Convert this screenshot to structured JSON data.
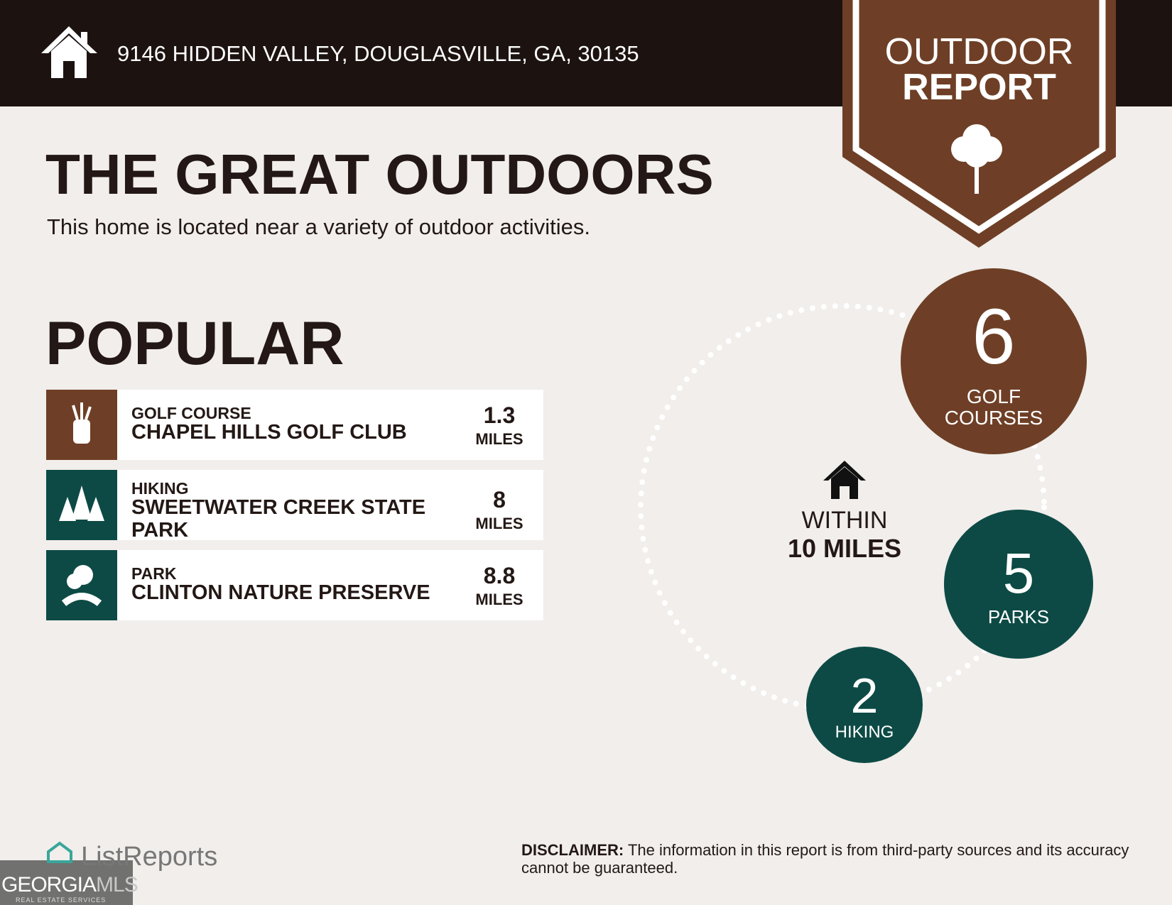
{
  "header": {
    "address": "9146 HIDDEN VALLEY, DOUGLASVILLE, GA, 30135"
  },
  "badge": {
    "line1": "OUTDOOR",
    "line2": "REPORT"
  },
  "title": "THE GREAT OUTDOORS",
  "subtitle": "This home is located near a variety of outdoor activities.",
  "section_title": "POPULAR",
  "activities": [
    {
      "category": "GOLF COURSE",
      "name": "CHAPEL HILLS GOLF CLUB",
      "distance": 1.3,
      "unit": "MILES"
    },
    {
      "category": "HIKING",
      "name": "SWEETWATER CREEK STATE PARK",
      "distance": 8,
      "unit": "MILES"
    },
    {
      "category": "PARK",
      "name": "CLINTON NATURE PRESERVE",
      "distance": 8.8,
      "unit": "MILES"
    }
  ],
  "summary": {
    "line1": "WITHIN",
    "line2": "10 MILES",
    "counts": [
      {
        "count": 6,
        "label_lines": [
          "GOLF",
          "COURSES"
        ]
      },
      {
        "count": 5,
        "label_lines": [
          "PARKS"
        ]
      },
      {
        "count": 2,
        "label_lines": [
          "HIKING"
        ]
      }
    ]
  },
  "footer": {
    "brand": "ListReports",
    "mls_part1": "GEORGIA",
    "mls_part2": "MLS",
    "mls_tagline": "REAL ESTATE SERVICES",
    "disclaimer_label": "DISCLAIMER:",
    "disclaimer_text": "The information in this report is from third-party sources and its accuracy cannot be guaranteed."
  }
}
